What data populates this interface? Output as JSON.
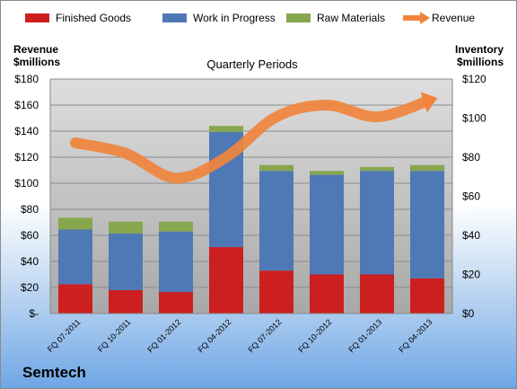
{
  "company": "Semtech",
  "chart_data": {
    "type": "bar",
    "stacked": true,
    "title": "Quarterly Periods",
    "categories": [
      "FQ 07-2011",
      "FQ 10-2011",
      "FQ 01-2012",
      "FQ 04-2012",
      "FQ 07-2012",
      "FQ 10-2012",
      "FQ 01-2013",
      "FQ 04-2013"
    ],
    "left_axis": {
      "label_line1": "Revenue",
      "label_line2": "$millions",
      "ylim": [
        0,
        180
      ],
      "ticks": [
        0,
        20,
        40,
        60,
        80,
        100,
        120,
        140,
        160,
        180
      ],
      "tick_labels": [
        "$-",
        "$20",
        "$40",
        "$60",
        "$80",
        "$100",
        "$120",
        "$140",
        "$160",
        "$180"
      ]
    },
    "right_axis": {
      "label_line1": "Inventory",
      "label_line2": "$millions",
      "ylim": [
        0,
        120
      ],
      "ticks": [
        0,
        20,
        40,
        60,
        80,
        100,
        120
      ],
      "tick_labels": [
        "$0",
        "$20",
        "$40",
        "$60",
        "$80",
        "$100",
        "$120"
      ]
    },
    "series": [
      {
        "name": "Finished Goods",
        "kind": "bar",
        "axis": "right",
        "color": "#cc1f1f",
        "values": [
          15,
          12,
          11,
          34,
          22,
          20,
          20,
          18
        ]
      },
      {
        "name": "Work in Progress",
        "kind": "bar",
        "axis": "right",
        "color": "#4f78b6",
        "values": [
          28,
          29,
          31,
          59,
          51,
          51,
          53,
          55
        ]
      },
      {
        "name": "Raw Materials",
        "kind": "bar",
        "axis": "right",
        "color": "#86a74e",
        "values": [
          6,
          6,
          5,
          3,
          3,
          2,
          2,
          3
        ]
      },
      {
        "name": "Revenue",
        "kind": "line",
        "axis": "left",
        "color": "#f0843c",
        "values": [
          131,
          123,
          104,
          120,
          151,
          160,
          151,
          163
        ]
      }
    ],
    "legend_position": "top",
    "grid": true
  }
}
